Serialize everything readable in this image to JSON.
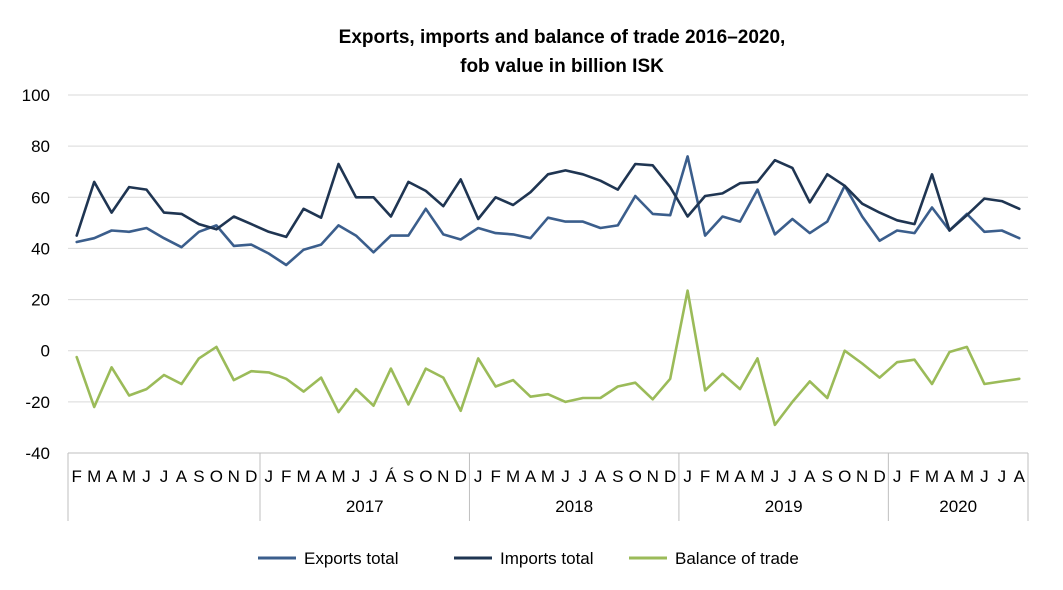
{
  "chart_data": {
    "type": "line",
    "title": [
      "Exports, imports and balance of trade 2016–2020,",
      "fob value in billion ISK"
    ],
    "ylim": [
      -40,
      100
    ],
    "yticks": [
      100,
      80,
      60,
      40,
      20,
      0,
      -20,
      -40
    ],
    "grid": true,
    "legend_position": "bottom",
    "x": [
      "F",
      "M",
      "A",
      "M",
      "J",
      "J",
      "A",
      "S",
      "O",
      "N",
      "D",
      "J",
      "F",
      "M",
      "A",
      "M",
      "J",
      "J",
      "Á",
      "S",
      "O",
      "N",
      "D",
      "J",
      "F",
      "M",
      "A",
      "M",
      "J",
      "J",
      "A",
      "S",
      "O",
      "N",
      "D",
      "J",
      "F",
      "M",
      "A",
      "M",
      "J",
      "J",
      "A",
      "S",
      "O",
      "N",
      "D",
      "J",
      "F",
      "M",
      "A",
      "M",
      "J",
      "J",
      "A"
    ],
    "year_groups": [
      {
        "label": "",
        "count": 11
      },
      {
        "label": "2017",
        "count": 12
      },
      {
        "label": "2018",
        "count": 12
      },
      {
        "label": "2019",
        "count": 12
      },
      {
        "label": "2020",
        "count": 8
      }
    ],
    "series": [
      {
        "name": "Exports total",
        "color": "#3b5e8c",
        "values": [
          42.5,
          44,
          47,
          46.5,
          48,
          44,
          40.5,
          46.5,
          49,
          41,
          41.5,
          38,
          33.5,
          39.5,
          41.5,
          49,
          45,
          38.5,
          45,
          45,
          55.5,
          45.5,
          43.5,
          48,
          46,
          45.5,
          44,
          52,
          50.5,
          50.5,
          48,
          49,
          60.5,
          53.5,
          53,
          76,
          45,
          52.5,
          50.5,
          63,
          45.5,
          51.5,
          46,
          50.5,
          64.5,
          52.5,
          43,
          47,
          46,
          56,
          47,
          53.5,
          46.5,
          47,
          44
        ]
      },
      {
        "name": "Imports total",
        "color": "#1f3552",
        "values": [
          45,
          66,
          54,
          64,
          63,
          54,
          53.5,
          49.5,
          47.5,
          52.5,
          49.5,
          46.5,
          44.5,
          55.5,
          52,
          73,
          60,
          60,
          52.5,
          66,
          62.5,
          56.5,
          67,
          51.5,
          60,
          57,
          62,
          69,
          70.5,
          69,
          66.5,
          63,
          73,
          72.5,
          64,
          52.5,
          60.5,
          61.5,
          65.5,
          66,
          74.5,
          71.5,
          58,
          69,
          64.5,
          57.5,
          54,
          51,
          49.5,
          69,
          47,
          53,
          59.5,
          58.5,
          55.5
        ]
      },
      {
        "name": "Balance of trade",
        "color": "#9bbb59",
        "values": [
          -2.5,
          -22,
          -6.5,
          -17.5,
          -15,
          -9.5,
          -13,
          -3,
          1.5,
          -11.5,
          -8,
          -8.5,
          -11,
          -16,
          -10.5,
          -24,
          -15,
          -21.5,
          -7,
          -21,
          -7,
          -10.5,
          -23.5,
          -3,
          -14,
          -11.5,
          -18,
          -17,
          -20,
          -18.5,
          -18.5,
          -14,
          -12.5,
          -19,
          -11,
          23.5,
          -15.5,
          -9,
          -15,
          -3,
          -29,
          -20,
          -12,
          -18.5,
          0,
          -5,
          -10.5,
          -4.5,
          -3.5,
          -13,
          -0.5,
          1.5,
          -13,
          -12,
          -11
        ]
      }
    ]
  }
}
